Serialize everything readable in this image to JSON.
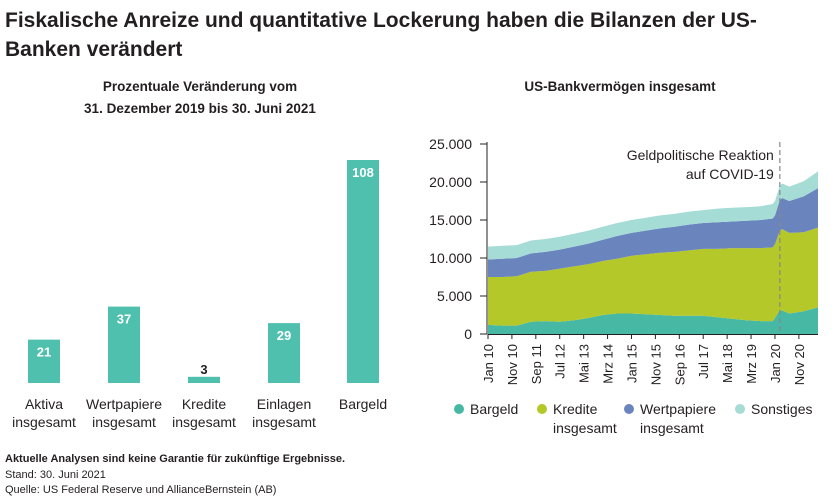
{
  "title": "Fiskalische Anreize und quantitative Lockerung haben die Bilanzen der US-Banken verändert",
  "colors": {
    "teal": "#4fbfae",
    "cash": "#47b8a3",
    "loans": "#b5c82a",
    "securities": "#6a84be",
    "other": "#a6dcd6"
  },
  "chart_data": [
    {
      "type": "bar",
      "title_line1": "Prozentuale Veränderung vom",
      "title_line2": "31. Dezember 2019 bis 30. Juni 2021",
      "categories": [
        {
          "line1": "Aktiva",
          "line2": "insgesamt"
        },
        {
          "line1": "Wertpapiere",
          "line2": "insgesamt"
        },
        {
          "line1": "Kredite",
          "line2": "insgesamt"
        },
        {
          "line1": "Einlagen",
          "line2": "insgesamt"
        },
        {
          "line1": "Bargeld",
          "line2": ""
        }
      ],
      "values": [
        21,
        37,
        3,
        29,
        108
      ],
      "ylim": [
        0,
        108
      ]
    },
    {
      "type": "area",
      "stacked": true,
      "title": "US-Bankvermögen insgesamt",
      "ylim": [
        0,
        25000
      ],
      "yticks": [
        0,
        5000,
        10000,
        15000,
        20000,
        25000
      ],
      "ytick_labels": [
        "0",
        "5.000",
        "10.000",
        "15.000",
        "20.000",
        "25.000"
      ],
      "x_start": "2010-01",
      "x_end": "2021-06",
      "xtick_labels": [
        "Jan 10",
        "Nov 10",
        "Sep 11",
        "Jul 12",
        "Mai 13",
        "Mrz 14",
        "Jan 15",
        "Nov 15",
        "Sep 16",
        "Jul 17",
        "Mai 18",
        "Mrz 19",
        "Jan 20",
        "Nov 20"
      ],
      "x": [
        2010.0,
        2010.5,
        2011.0,
        2011.5,
        2012.0,
        2012.5,
        2013.0,
        2013.5,
        2014.0,
        2014.5,
        2015.0,
        2015.5,
        2016.0,
        2016.5,
        2017.0,
        2017.5,
        2018.0,
        2018.5,
        2019.0,
        2019.5,
        2019.92,
        2020.0,
        2020.17,
        2020.25,
        2020.5,
        2021.0,
        2021.5
      ],
      "series": [
        {
          "name": "Bargeld",
          "legend_line1": "Bargeld",
          "legend_line2": "",
          "color_key": "cash",
          "values": [
            1200,
            1100,
            1100,
            1600,
            1700,
            1600,
            1800,
            2100,
            2500,
            2700,
            2700,
            2600,
            2500,
            2400,
            2400,
            2400,
            2200,
            2000,
            1800,
            1700,
            1700,
            2100,
            3100,
            3100,
            2700,
            3000,
            3500
          ]
        },
        {
          "name": "Kredite insgesamt",
          "legend_line1": "Kredite",
          "legend_line2": "insgesamt",
          "color_key": "loans",
          "values": [
            6300,
            6400,
            6500,
            6600,
            6600,
            7000,
            7100,
            7100,
            7100,
            7200,
            7600,
            7900,
            8200,
            8400,
            8600,
            8800,
            9000,
            9300,
            9500,
            9600,
            9700,
            9700,
            10500,
            10700,
            10600,
            10400,
            10500
          ]
        },
        {
          "name": "Wertpapiere insgesamt",
          "legend_line1": "Wertpapiere",
          "legend_line2": "insgesamt",
          "color_key": "securities",
          "values": [
            2300,
            2400,
            2400,
            2400,
            2500,
            2500,
            2600,
            2700,
            2800,
            3000,
            3000,
            3100,
            3200,
            3300,
            3400,
            3400,
            3500,
            3500,
            3600,
            3700,
            3800,
            3800,
            4000,
            4100,
            4200,
            4700,
            5200
          ]
        },
        {
          "name": "Sonstiges",
          "legend_line1": "Sonstiges",
          "legend_line2": "",
          "color_key": "other",
          "values": [
            1700,
            1700,
            1700,
            1700,
            1700,
            1700,
            1700,
            1700,
            1700,
            1700,
            1700,
            1700,
            1700,
            1700,
            1700,
            1700,
            1800,
            1800,
            1800,
            1800,
            1900,
            1900,
            1900,
            1900,
            1900,
            2000,
            2200
          ]
        }
      ],
      "annotation": {
        "line1": "Geldpolitische Reaktion",
        "line2": "auf COVID-19",
        "x": 2020.17
      }
    }
  ],
  "footer": {
    "bold": "Aktuelle Analysen sind keine Garantie für zukünftige Ergebnisse.",
    "line1": "Stand: 30. Juni 2021",
    "line2": "Quelle: US Federal Reserve und AllianceBernstein (AB)"
  }
}
